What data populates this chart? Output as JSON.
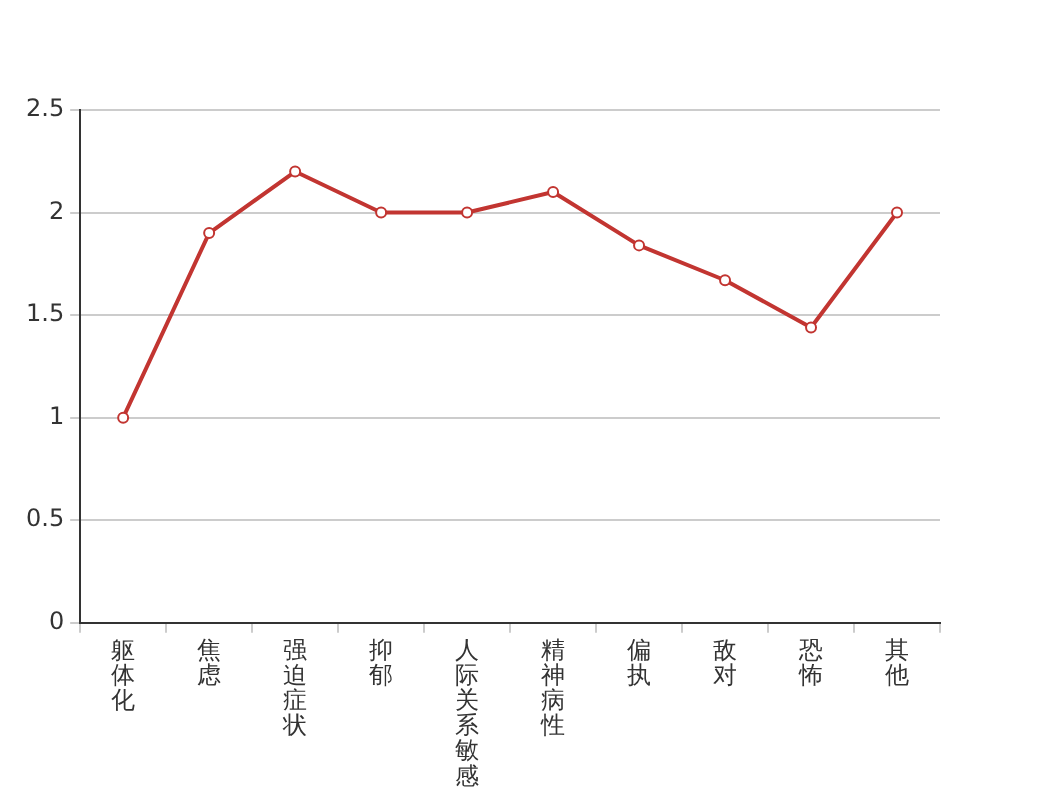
{
  "chart_data": {
    "type": "line",
    "categories": [
      "躯体化",
      "焦虑",
      "强迫症状",
      "抑郁",
      "人际关系敏感",
      "精神病性",
      "偏执",
      "敌对",
      "恐怖",
      "其他"
    ],
    "series": [
      {
        "color": "#c23531",
        "values": [
          1,
          1.9,
          2.2,
          2,
          2,
          2.1,
          1.84,
          1.67,
          1.44,
          2
        ]
      }
    ],
    "ylim": [
      0,
      2.5
    ],
    "yticks": [
      0,
      0.5,
      1,
      1.5,
      2,
      2.5
    ],
    "grid": "y",
    "legend": false,
    "marker": "circle",
    "line_style": "solid"
  }
}
